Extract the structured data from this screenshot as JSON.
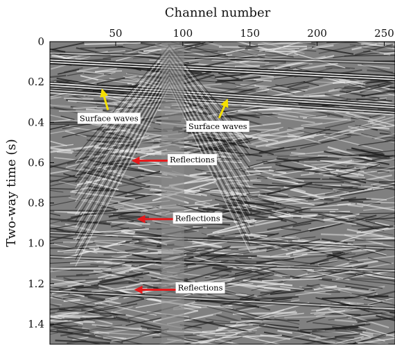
{
  "chart_data": {
    "type": "heatmap",
    "title": "",
    "xlabel": "Channel number",
    "ylabel": "Two-way time (s)",
    "x_axis_position": "top",
    "xlim": [
      1,
      258
    ],
    "ylim": [
      0,
      1.5
    ],
    "y_inverted": true,
    "x_ticks": [
      50,
      100,
      150,
      200,
      250
    ],
    "y_ticks": [
      0,
      0.2,
      0.4,
      0.6,
      0.8,
      1.0,
      1.2,
      1.4
    ],
    "x_tick_labels": [
      "50",
      "100",
      "150",
      "200",
      "250"
    ],
    "y_tick_labels": [
      "0",
      "0.2",
      "0.4",
      "0.6",
      "0.8",
      "1.0",
      "1.2",
      "1.4"
    ],
    "colormap": "gray",
    "grid": false,
    "annotations": [
      {
        "text": "Surface waves",
        "x": 45,
        "y": 0.38,
        "arrow_to": [
          40,
          0.24
        ],
        "arrow_color": "#f5e000"
      },
      {
        "text": "Surface waves",
        "x": 126,
        "y": 0.42,
        "arrow_to": [
          133,
          0.29
        ],
        "arrow_color": "#f5e000"
      },
      {
        "text": "Reflections",
        "x": 107,
        "y": 0.585,
        "arrow_to": [
          63,
          0.59
        ],
        "arrow_color": "#e41a1c"
      },
      {
        "text": "Reflections",
        "x": 111,
        "y": 0.875,
        "arrow_to": [
          67,
          0.88
        ],
        "arrow_color": "#e41a1c"
      },
      {
        "text": "Reflections",
        "x": 113,
        "y": 1.22,
        "arrow_to": [
          65,
          1.23
        ],
        "arrow_color": "#e41a1c"
      }
    ]
  }
}
